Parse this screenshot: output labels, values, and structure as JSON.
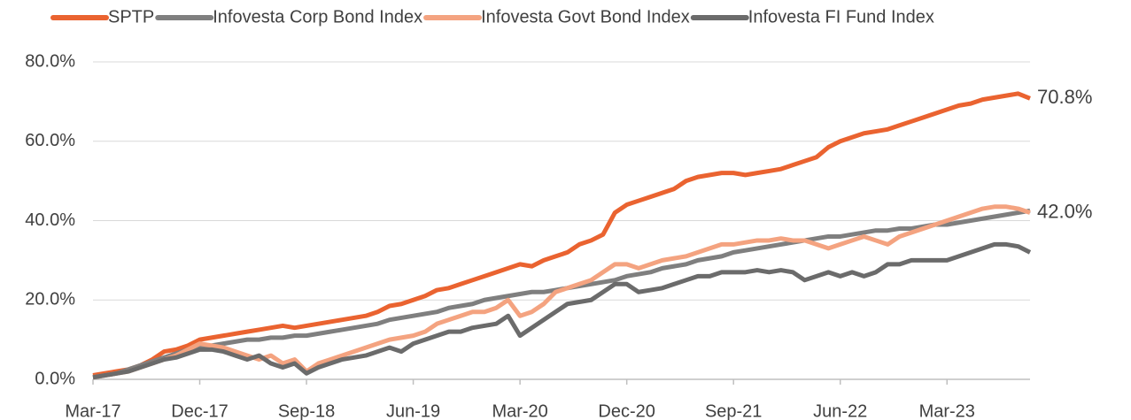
{
  "chart_data": {
    "type": "line",
    "categories": [
      "Mar-17",
      null,
      null,
      null,
      null,
      null,
      null,
      null,
      null,
      "Dec-17",
      null,
      null,
      null,
      null,
      null,
      null,
      null,
      null,
      "Sep-18",
      null,
      null,
      null,
      null,
      null,
      null,
      null,
      null,
      "Jun-19",
      null,
      null,
      null,
      null,
      null,
      null,
      null,
      null,
      "Mar-20",
      null,
      null,
      null,
      null,
      null,
      null,
      null,
      null,
      "Dec-20",
      null,
      null,
      null,
      null,
      null,
      null,
      null,
      null,
      "Sep-21",
      null,
      null,
      null,
      null,
      null,
      null,
      null,
      null,
      "Jun-22",
      null,
      null,
      null,
      null,
      null,
      null,
      null,
      null,
      "Mar-23",
      null,
      null,
      null,
      null,
      null,
      null,
      null
    ],
    "series": [
      {
        "name": "SPTP",
        "color": "#ea6330",
        "values": [
          1,
          1.5,
          2,
          2.5,
          3.5,
          5,
          7,
          7.5,
          8.5,
          10,
          10.5,
          11,
          11.5,
          12,
          12.5,
          13,
          13.5,
          13,
          13.5,
          14,
          14.5,
          15,
          15.5,
          16,
          17,
          18.5,
          19,
          20,
          21,
          22.5,
          23,
          24,
          25,
          26,
          27,
          28,
          29,
          28.5,
          30,
          31,
          32,
          34,
          35,
          36.5,
          42,
          44,
          45,
          46,
          47,
          48,
          50,
          51,
          51.5,
          52,
          52,
          51.5,
          52,
          52.5,
          53,
          54,
          55,
          56,
          58.5,
          60,
          61,
          62,
          62.5,
          63,
          64,
          65,
          66,
          67,
          68,
          69,
          69.5,
          70.5,
          71,
          71.5,
          72,
          70.8
        ]
      },
      {
        "name": "Infovesta Corp Bond Index",
        "color": "#7f7f7f",
        "values": [
          0.5,
          1,
          1.5,
          2.5,
          3.5,
          4.5,
          5.5,
          6.5,
          7.5,
          8,
          8.5,
          9,
          9.5,
          10,
          10,
          10.5,
          10.5,
          11,
          11,
          11.5,
          12,
          12.5,
          13,
          13.5,
          14,
          15,
          15.5,
          16,
          16.5,
          17,
          18,
          18.5,
          19,
          20,
          20.5,
          21,
          21.5,
          22,
          22,
          22.5,
          23,
          23.5,
          24,
          24.5,
          25,
          26,
          26.5,
          27,
          28,
          28.5,
          29,
          30,
          30.5,
          31,
          32,
          32.5,
          33,
          33.5,
          34,
          34.5,
          35,
          35.5,
          36,
          36,
          36.5,
          37,
          37.5,
          37.5,
          38,
          38,
          38.5,
          39,
          39,
          39.5,
          40,
          40.5,
          41,
          41.5,
          42,
          42.5
        ]
      },
      {
        "name": "Infovesta Govt Bond Index",
        "color": "#f4a380",
        "values": [
          0.5,
          1,
          1.5,
          2,
          3,
          4,
          5,
          6,
          7.5,
          9,
          8.5,
          8,
          7,
          6,
          5,
          6,
          4,
          5,
          2,
          4,
          5,
          6,
          7,
          8,
          9,
          10,
          10.5,
          11,
          12,
          14,
          15,
          16,
          17,
          17,
          18,
          20,
          16,
          17,
          19,
          22,
          23,
          24,
          25,
          27,
          29,
          29,
          28,
          29,
          30,
          30.5,
          31,
          32,
          33,
          34,
          34,
          34.5,
          35,
          35,
          35.5,
          35,
          35,
          34,
          33,
          34,
          35,
          36,
          35,
          34,
          36,
          37,
          38,
          39,
          40,
          41,
          42,
          43,
          43.5,
          43.5,
          43,
          42
        ]
      },
      {
        "name": "Infovesta FI Fund Index",
        "color": "#6b6b6b",
        "values": [
          0.5,
          1,
          1.5,
          2,
          3,
          4,
          5,
          5.5,
          6.5,
          7.5,
          7.5,
          7,
          6,
          5,
          6,
          4,
          3,
          4,
          1.5,
          3,
          4,
          5,
          5.5,
          6,
          7,
          8,
          7,
          9,
          10,
          11,
          12,
          12,
          13,
          13.5,
          14,
          16,
          11,
          13,
          15,
          17,
          19,
          19.5,
          20,
          22,
          24,
          24,
          22,
          22.5,
          23,
          24,
          25,
          26,
          26,
          27,
          27,
          27,
          27.5,
          27,
          27.5,
          27,
          25,
          26,
          27,
          26,
          27,
          26,
          27,
          29,
          29,
          30,
          30,
          30,
          30,
          31,
          32,
          33,
          34,
          34,
          33.5,
          32
        ]
      }
    ],
    "ylim": [
      0,
      80
    ],
    "yticks": [
      {
        "value": 0,
        "label": "0.0%"
      },
      {
        "value": 20,
        "label": "20.0%"
      },
      {
        "value": 40,
        "label": "40.0%"
      },
      {
        "value": 60,
        "label": "60.0%"
      },
      {
        "value": 80,
        "label": "80.0%"
      }
    ],
    "grid": true,
    "legend": "top",
    "annotations": [
      {
        "text": "70.8%",
        "value": 70.8
      },
      {
        "text": "42.0%",
        "value": 42.0
      }
    ]
  }
}
